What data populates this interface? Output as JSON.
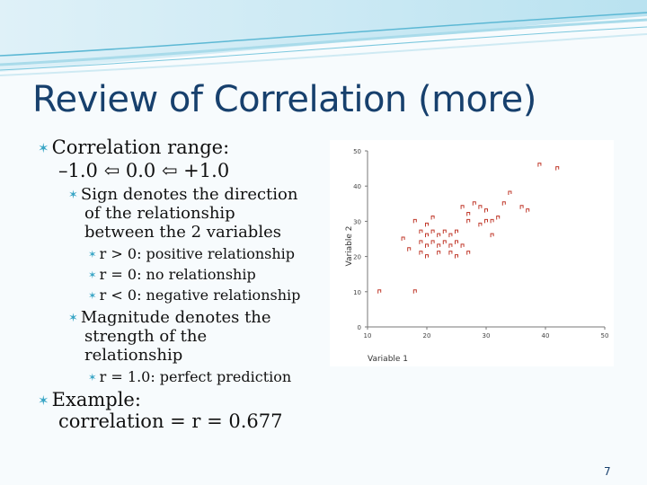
{
  "slide": {
    "title": "Review of Correlation (more)",
    "page_number": "7"
  },
  "bullets": {
    "range_heading": "Correlation range:",
    "range_line": "–1.0 ⇦ 0.0 ⇦ +1.0",
    "sign_heading": [
      "Sign denotes the direction",
      "of the relationship",
      "between the 2 variables"
    ],
    "sign_items": [
      "r > 0: positive relationship",
      "r = 0: no relationship",
      "r < 0: negative relationship"
    ],
    "magnitude_heading": [
      "Magnitude denotes the",
      "strength of the",
      "relationship"
    ],
    "magnitude_items": [
      "r = 1.0: perfect prediction"
    ],
    "example_heading": "Example:",
    "example_line": "correlation = r = 0.677"
  },
  "chart_data": {
    "type": "scatter",
    "xlabel": "Variable 1",
    "ylabel": "Variable 2",
    "xlim": [
      10,
      50
    ],
    "ylim": [
      0,
      50
    ],
    "x_ticks": [
      "10",
      "20",
      "30",
      "40",
      "50"
    ],
    "y_ticks": [
      "0",
      "10",
      "20",
      "30",
      "40",
      "50"
    ],
    "marker_color": "#c0392b",
    "points": [
      [
        12,
        10
      ],
      [
        18,
        10
      ],
      [
        18,
        30
      ],
      [
        20,
        29
      ],
      [
        21,
        31
      ],
      [
        19,
        27
      ],
      [
        20,
        26
      ],
      [
        21,
        27
      ],
      [
        22,
        26
      ],
      [
        23,
        27
      ],
      [
        24,
        26
      ],
      [
        25,
        27
      ],
      [
        19,
        24
      ],
      [
        20,
        23
      ],
      [
        21,
        24
      ],
      [
        22,
        23
      ],
      [
        23,
        24
      ],
      [
        24,
        23
      ],
      [
        25,
        24
      ],
      [
        26,
        23
      ],
      [
        19,
        21
      ],
      [
        20,
        20
      ],
      [
        22,
        21
      ],
      [
        24,
        21
      ],
      [
        25,
        20
      ],
      [
        27,
        21
      ],
      [
        16,
        25
      ],
      [
        17,
        22
      ],
      [
        26,
        34
      ],
      [
        27,
        32
      ],
      [
        28,
        35
      ],
      [
        29,
        34
      ],
      [
        30,
        33
      ],
      [
        27,
        30
      ],
      [
        29,
        29
      ],
      [
        30,
        30
      ],
      [
        31,
        30
      ],
      [
        32,
        31
      ],
      [
        31,
        26
      ],
      [
        33,
        35
      ],
      [
        34,
        38
      ],
      [
        36,
        34
      ],
      [
        37,
        33
      ],
      [
        39,
        46
      ],
      [
        42,
        45
      ]
    ]
  },
  "colors": {
    "title": "#17406d",
    "bullet": "#3aa6c6",
    "wave_light": "#a9dbea",
    "wave_dark": "#5cb8d4"
  }
}
